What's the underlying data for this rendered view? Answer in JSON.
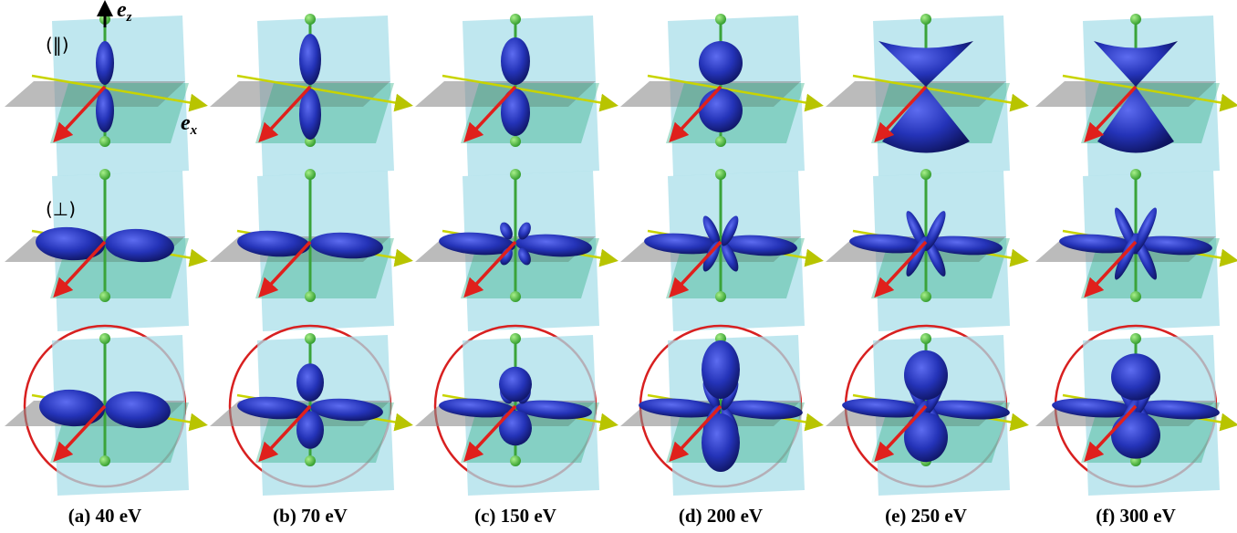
{
  "figure": {
    "row_labels": [
      "(‖)",
      "(⊥)"
    ],
    "axis_labels": {
      "z": {
        "symbol": "e",
        "subscript": "z"
      },
      "x": {
        "symbol": "e",
        "subscript": "x"
      }
    },
    "captions": [
      "(a) 40 eV",
      "(b) 70 eV",
      "(c) 150 eV",
      "(d) 200 eV",
      "(e) 250 eV",
      "(f) 300 eV"
    ]
  }
}
